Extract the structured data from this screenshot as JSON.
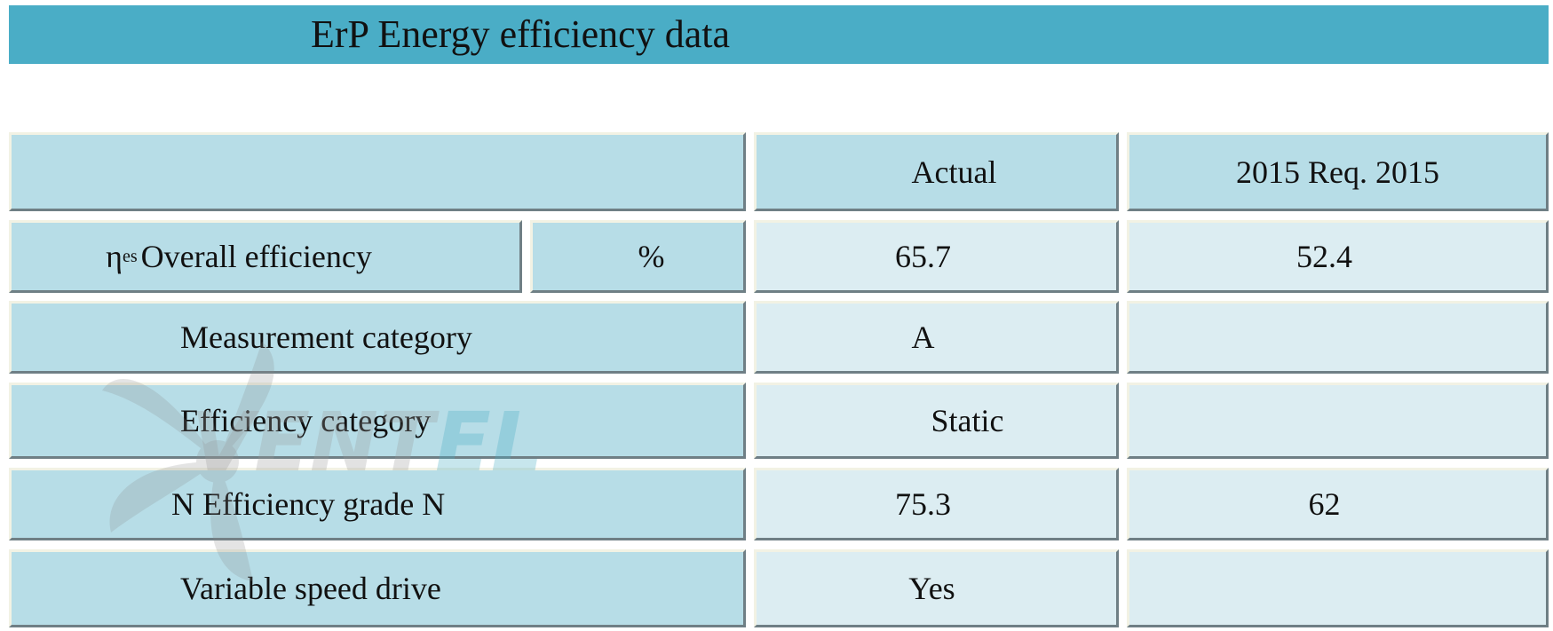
{
  "title": "ErP Energy efficiency data",
  "header": {
    "empty": "",
    "col_actual": "Actual",
    "col_req": "2015 Req. 2015"
  },
  "rows": [
    {
      "symbol": "η",
      "symbol_sub": "es",
      "label": "Overall efficiency",
      "unit": "%",
      "actual": "65.7",
      "req": "52.4"
    },
    {
      "label": "Measurement category",
      "actual": "A",
      "req": ""
    },
    {
      "label": "Efficiency category",
      "actual": "Static",
      "req": ""
    },
    {
      "label": "N Efficiency grade N",
      "actual": "75.3",
      "req": "62"
    },
    {
      "label": "Variable speed drive",
      "actual": "Yes",
      "req": ""
    }
  ],
  "watermark": "VENTEL",
  "colors": {
    "title_bar": "#4aadc6",
    "cell_dark": "#b7dde7",
    "cell_light": "#dcedf2"
  }
}
